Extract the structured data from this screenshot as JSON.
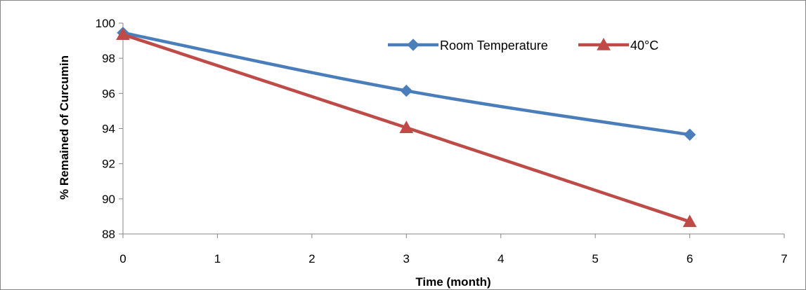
{
  "chart_data": {
    "type": "line",
    "title": "",
    "xlabel": "Time (month)",
    "ylabel": "% Remained of Curcumin",
    "xlim": [
      0,
      7
    ],
    "ylim": [
      88,
      100
    ],
    "xticks": [
      0,
      1,
      2,
      3,
      4,
      5,
      6,
      7
    ],
    "yticks": [
      88,
      90,
      92,
      94,
      96,
      98,
      100
    ],
    "grid": false,
    "legend": "top-right",
    "smooth": true,
    "series": [
      {
        "name": "Room Temperature",
        "color": "#4a7ebb",
        "marker": "diamond",
        "x": [
          0,
          3,
          6
        ],
        "y": [
          99.45,
          96.15,
          93.65
        ]
      },
      {
        "name": "40°C",
        "color": "#be4b48",
        "marker": "triangle",
        "x": [
          0,
          3,
          6
        ],
        "y": [
          99.35,
          94.05,
          88.7
        ]
      }
    ]
  }
}
